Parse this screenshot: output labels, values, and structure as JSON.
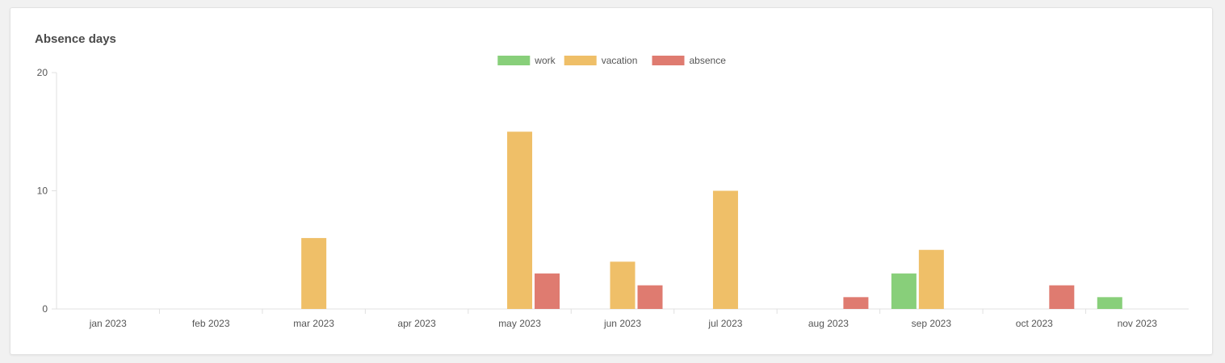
{
  "card": {
    "title": "Absence days"
  },
  "chart_data": {
    "type": "bar",
    "title": "",
    "xlabel": "",
    "ylabel": "",
    "categories": [
      "jan 2023",
      "feb 2023",
      "mar 2023",
      "apr 2023",
      "may 2023",
      "jun 2023",
      "jul 2023",
      "aug 2023",
      "sep 2023",
      "oct 2023",
      "nov 2023"
    ],
    "ylim": [
      0,
      20
    ],
    "yticks": [
      0,
      10,
      20
    ],
    "legend_position": "top-center",
    "grid": false,
    "series": [
      {
        "name": "work",
        "color": "#88cf7a",
        "values": [
          0,
          0,
          0,
          0,
          0,
          0,
          0,
          0,
          3,
          0,
          1
        ]
      },
      {
        "name": "vacation",
        "color": "#efbf68",
        "values": [
          0,
          0,
          6,
          0,
          15,
          4,
          10,
          0,
          5,
          0,
          0
        ]
      },
      {
        "name": "absence",
        "color": "#df7b70",
        "values": [
          0,
          0,
          0,
          0,
          3,
          2,
          0,
          1,
          0,
          2,
          0
        ]
      }
    ]
  }
}
